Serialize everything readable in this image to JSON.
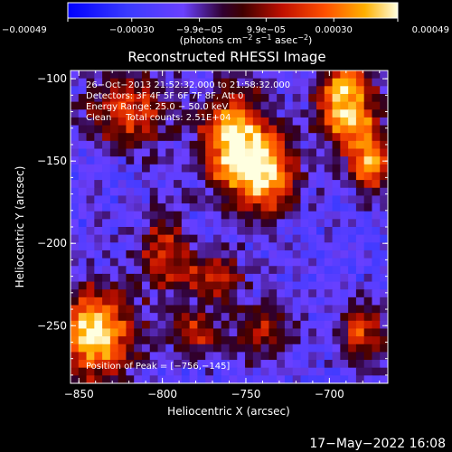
{
  "chart_data": {
    "type": "heatmap",
    "title": "Reconstructed RHESSI Image",
    "xlabel": "Heliocentric X (arcsec)",
    "ylabel": "Heliocentric Y (arcsec)",
    "xlim": [
      -855,
      -665
    ],
    "ylim": [
      -285,
      -95
    ],
    "x_ticks": [
      {
        "value": -850,
        "label": "−850"
      },
      {
        "value": -800,
        "label": "−800"
      },
      {
        "value": -750,
        "label": "−750"
      },
      {
        "value": -700,
        "label": "−700"
      }
    ],
    "y_ticks": [
      {
        "value": -100,
        "label": "−100"
      },
      {
        "value": -150,
        "label": "−150"
      },
      {
        "value": -200,
        "label": "−200"
      },
      {
        "value": -250,
        "label": "−250"
      }
    ],
    "colorbar": {
      "min": -0.00049,
      "max": 0.00049,
      "tick_labels": [
        "−0.00049",
        "−0.00030",
        "−9.9e−05",
        "9.9e−05",
        "0.00030",
        "0.00049"
      ],
      "tick_values": [
        -0.00049,
        -0.0003,
        -9.9e-05,
        9.9e-05,
        0.0003,
        0.00049
      ],
      "units_parts": [
        "(photons cm",
        "−2",
        " s",
        "−1",
        " asec",
        "−2",
        ")"
      ]
    },
    "annotations": {
      "time_range": "26−Oct−2013 21:52:32.000 to 21:58:32.000",
      "detectors": "Detectors: 3F 4F 5F 6F 7F 8F, Att 0",
      "energy": "Energy Range: 25.0 − 50.0 keV",
      "clean": "Clean     Total counts: 2.51E+04",
      "peak": "Position of Peak = [−756,−145]"
    },
    "peak_position": [
      -756,
      -145
    ],
    "grid_note": "approximate 40x40 grid, normalized intensity (0=min, 1=max)",
    "grid_rows": 40,
    "grid_cols": 40,
    "hot_regions": [
      {
        "x": -756,
        "y": -140,
        "sx": 14,
        "sy": 22,
        "amp": 1.0
      },
      {
        "x": -735,
        "y": -160,
        "sx": 12,
        "sy": 16,
        "amp": 0.75
      },
      {
        "x": -690,
        "y": -115,
        "sx": 12,
        "sy": 20,
        "amp": 0.95
      },
      {
        "x": -675,
        "y": -150,
        "sx": 8,
        "sy": 14,
        "amp": 0.8
      },
      {
        "x": -840,
        "y": -255,
        "sx": 16,
        "sy": 20,
        "amp": 0.95
      },
      {
        "x": -820,
        "y": -120,
        "sx": 18,
        "sy": 16,
        "amp": 0.6
      },
      {
        "x": -800,
        "y": -205,
        "sx": 10,
        "sy": 16,
        "amp": 0.55
      },
      {
        "x": -770,
        "y": -220,
        "sx": 14,
        "sy": 10,
        "amp": 0.5
      },
      {
        "x": -780,
        "y": -255,
        "sx": 12,
        "sy": 10,
        "amp": 0.5
      },
      {
        "x": -680,
        "y": -255,
        "sx": 10,
        "sy": 14,
        "amp": 0.55
      },
      {
        "x": -740,
        "y": -255,
        "sx": 12,
        "sy": 12,
        "amp": 0.45
      }
    ]
  },
  "footer": {
    "date": "17−May−2022 16:08"
  }
}
